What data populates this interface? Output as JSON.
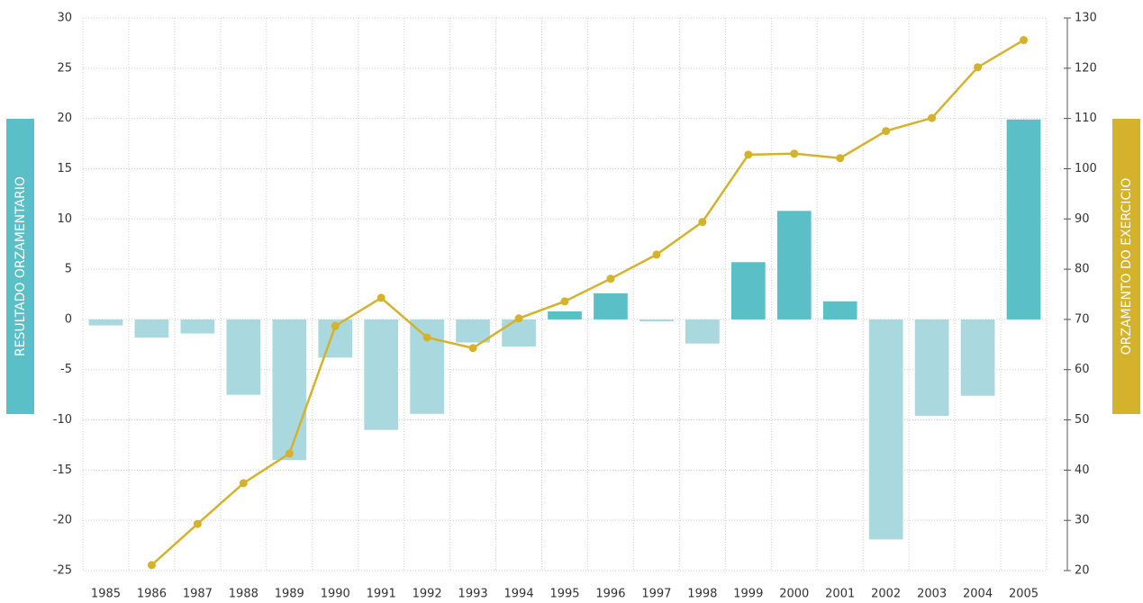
{
  "chart_data": {
    "type": "bar_line",
    "y_label": "RESULTADO ORZAMENTARIO",
    "y2_label": "ORZAMENTO DO EXERCICIO",
    "categories": [
      "1985",
      "1986",
      "1987",
      "1988",
      "1989",
      "1990",
      "1991",
      "1992",
      "1993",
      "1994",
      "1995",
      "1996",
      "1997",
      "1998",
      "1999",
      "2000",
      "2001",
      "2002",
      "2003",
      "2004",
      "2005"
    ],
    "series": [
      {
        "type": "bar",
        "axis": "y",
        "color": "#5bbfc8",
        "negative_color": "#a9d9de",
        "values": [
          -0.6,
          -1.8,
          -1.4,
          -7.5,
          -14,
          -3.8,
          -11,
          -9.4,
          -2.3,
          -2.7,
          0.8,
          2.6,
          -0.2,
          -2.4,
          5.7,
          10.8,
          1.8,
          -21.9,
          -9.6,
          -7.6,
          19.9
        ]
      },
      {
        "type": "line",
        "axis": "y2",
        "color": "#d4b22c",
        "values": [
          null,
          21.1,
          29.3,
          37.4,
          43.3,
          68.7,
          74.3,
          66.4,
          64.3,
          70.2,
          73.6,
          78.1,
          82.9,
          89.4,
          102.8,
          103,
          102.1,
          107.5,
          110.1,
          120.2,
          125.6
        ]
      }
    ],
    "ylim": [
      -25,
      30
    ],
    "yticks": [
      -25,
      -20,
      -15,
      -10,
      -5,
      0,
      5,
      10,
      15,
      20,
      25,
      30
    ],
    "y2lim": [
      20,
      130
    ],
    "y2ticks": [
      20,
      30,
      40,
      50,
      60,
      70,
      80,
      90,
      100,
      110,
      120,
      130
    ],
    "grid": true
  }
}
